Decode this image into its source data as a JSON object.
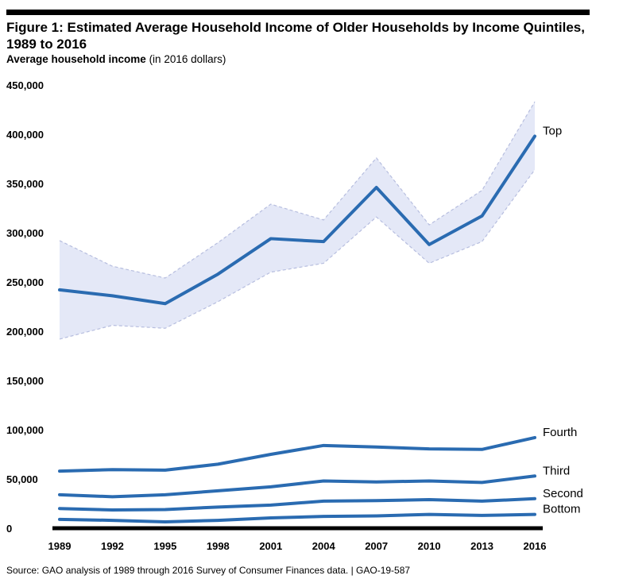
{
  "header": {
    "title": "Figure 1: Estimated Average Household Income of Older Households by Income Quintiles, 1989 to 2016",
    "subtitle_bold": "Average household income",
    "subtitle_rest": "(in 2016 dollars)"
  },
  "footer": {
    "source": "Source: GAO analysis of 1989 through 2016 Survey of Consumer Finances data.  |  GAO-19-587"
  },
  "colors": {
    "line": "#2a6bb1",
    "band_fill": "#e4e8f7",
    "band_edge": "#b7bedf",
    "axis": "#000000"
  },
  "chart_data": {
    "type": "line",
    "title": "Figure 1: Estimated Average Household Income of Older Households by Income Quintiles, 1989 to 2016",
    "ylabel": "Average household income (in 2016 dollars)",
    "xlabel": "",
    "ylim": [
      0,
      450000
    ],
    "yticks": [
      0,
      50000,
      100000,
      150000,
      200000,
      250000,
      300000,
      350000,
      400000,
      450000
    ],
    "ytick_labels": [
      "0",
      "50,000",
      "100,000",
      "150,000",
      "200,000",
      "250,000",
      "300,000",
      "350,000",
      "400,000",
      "450,000"
    ],
    "x": [
      1989,
      1992,
      1995,
      1998,
      2001,
      2004,
      2007,
      2010,
      2013,
      2016
    ],
    "x_labels": [
      "1989",
      "1992",
      "1995",
      "1998",
      "2001",
      "2004",
      "2007",
      "2010",
      "2013",
      "2016"
    ],
    "grid": false,
    "series": [
      {
        "name": "Top",
        "values": [
          242000,
          236000,
          228000,
          258000,
          294000,
          291000,
          346000,
          288000,
          317000,
          398000
        ],
        "upper": [
          292000,
          266000,
          254000,
          290000,
          329000,
          313000,
          376000,
          308000,
          343000,
          433000
        ],
        "lower": [
          192000,
          206000,
          203000,
          230000,
          260000,
          269000,
          316000,
          269000,
          291000,
          364000
        ]
      },
      {
        "name": "Fourth",
        "values": [
          58000,
          59500,
          59000,
          65000,
          75000,
          84000,
          82500,
          80500,
          80000,
          92000
        ]
      },
      {
        "name": "Third",
        "values": [
          34000,
          32000,
          34000,
          38000,
          42000,
          48000,
          47000,
          48000,
          46500,
          53000
        ]
      },
      {
        "name": "Second",
        "values": [
          20000,
          18500,
          19000,
          21500,
          23500,
          27500,
          28000,
          29000,
          27500,
          30000
        ]
      },
      {
        "name": "Bottom",
        "values": [
          9000,
          8000,
          6500,
          8000,
          10500,
          12000,
          12500,
          14000,
          13000,
          14000
        ]
      }
    ]
  }
}
